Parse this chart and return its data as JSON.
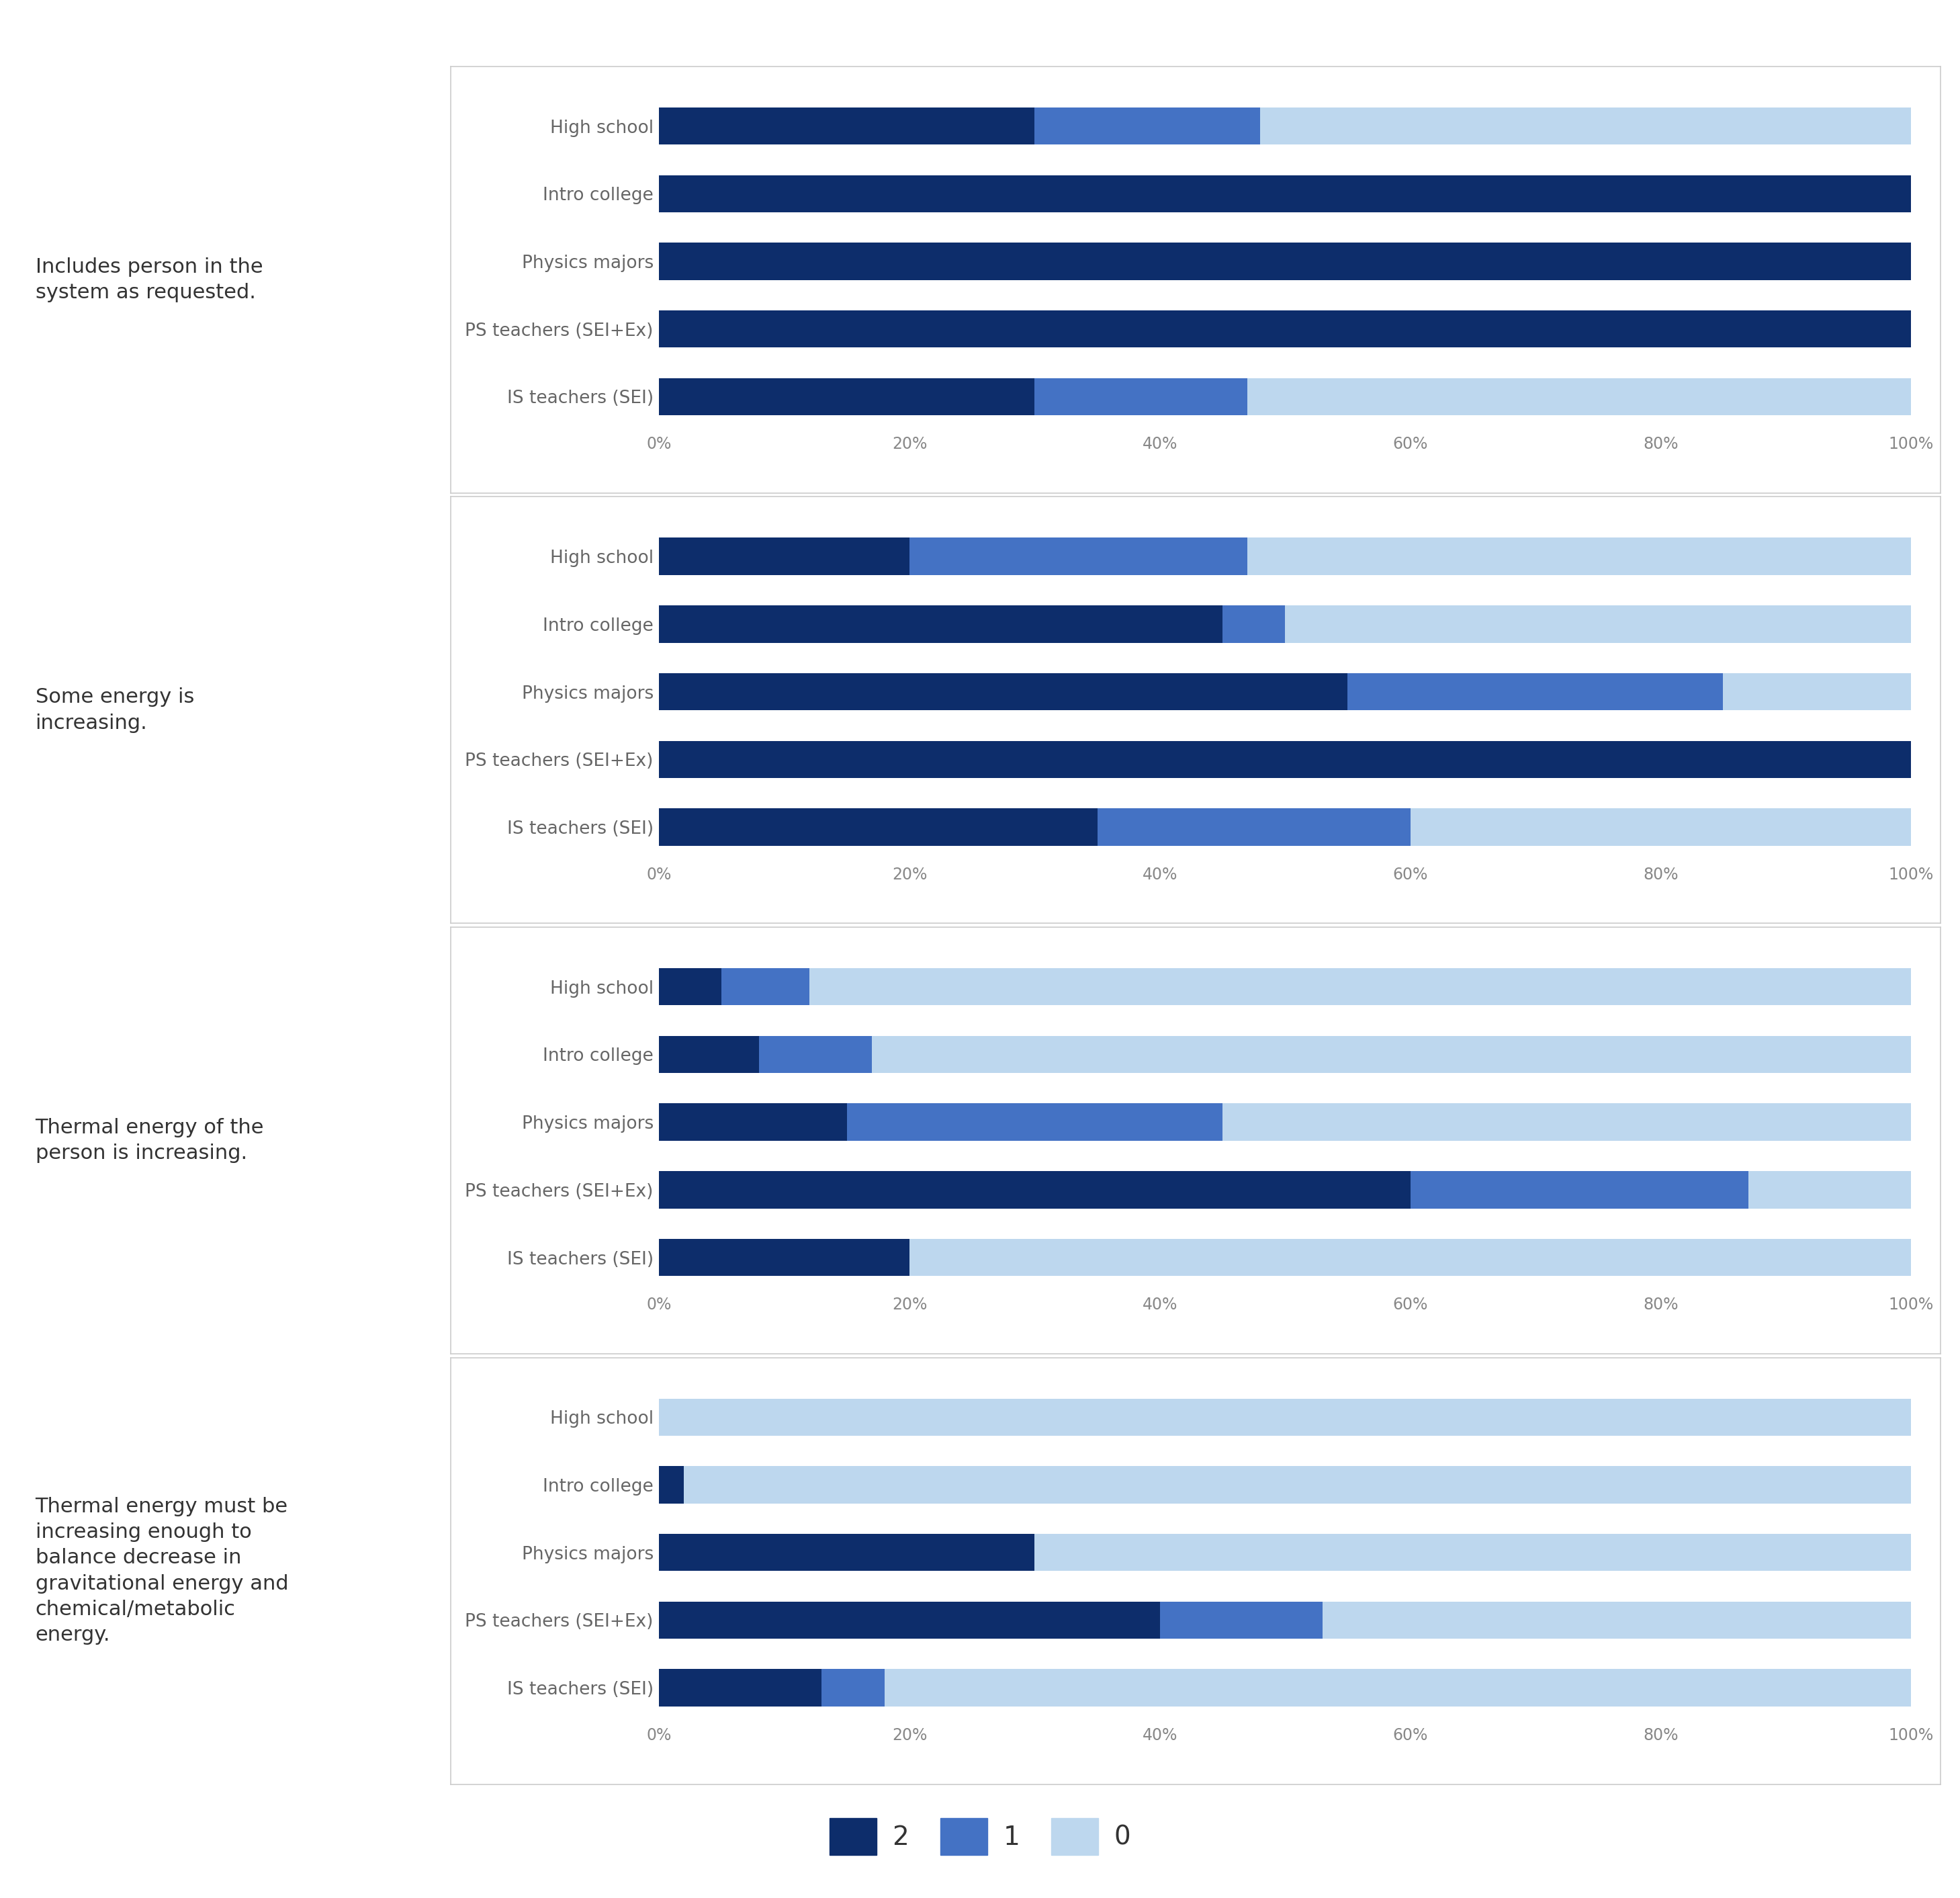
{
  "panels": [
    {
      "label": "Includes person in the\nsystem as requested.",
      "categories": [
        "IS teachers (SEI)",
        "PS teachers (SEI+Ex)",
        "Physics majors",
        "Intro college",
        "High school"
      ],
      "val2": [
        30,
        100,
        100,
        100,
        30
      ],
      "val1": [
        17,
        0,
        0,
        0,
        18
      ],
      "val0": [
        53,
        0,
        0,
        0,
        52
      ]
    },
    {
      "label": "Some energy is\nincreasing.",
      "categories": [
        "IS teachers (SEI)",
        "PS teachers (SEI+Ex)",
        "Physics majors",
        "Intro college",
        "High school"
      ],
      "val2": [
        35,
        100,
        55,
        45,
        20
      ],
      "val1": [
        25,
        0,
        30,
        5,
        27
      ],
      "val0": [
        40,
        0,
        15,
        50,
        53
      ]
    },
    {
      "label": "Thermal energy of the\nperson is increasing.",
      "categories": [
        "IS teachers (SEI)",
        "PS teachers (SEI+Ex)",
        "Physics majors",
        "Intro college",
        "High school"
      ],
      "val2": [
        20,
        60,
        15,
        8,
        5
      ],
      "val1": [
        0,
        27,
        30,
        9,
        7
      ],
      "val0": [
        80,
        13,
        55,
        83,
        88
      ]
    },
    {
      "label": "Thermal energy must be\nincreasing enough to\nbalance decrease in\ngravitational energy and\nchemical/metabolic\nenergy.",
      "categories": [
        "IS teachers (SEI)",
        "PS teachers (SEI+Ex)",
        "Physics majors",
        "Intro college",
        "High school"
      ],
      "val2": [
        13,
        40,
        30,
        2,
        0
      ],
      "val1": [
        5,
        13,
        0,
        0,
        0
      ],
      "val0": [
        82,
        47,
        70,
        98,
        100
      ]
    }
  ],
  "color2": "#0d2d6b",
  "color1": "#4472c4",
  "color0": "#bdd7ee",
  "bg_color": "#ffffff",
  "panel_border_color": "#cccccc",
  "tick_color": "#888888",
  "label_color": "#333333",
  "cat_color": "#666666",
  "xtick_labels": [
    "0%",
    "20%",
    "40%",
    "60%",
    "80%",
    "100%"
  ],
  "xtick_vals": [
    0,
    20,
    40,
    60,
    80,
    100
  ],
  "label_fontsize": 22,
  "cat_fontsize": 19,
  "tick_fontsize": 17,
  "legend_fontsize": 28,
  "bar_height": 0.55,
  "grid_color": "#ffffff",
  "grid_linewidth": 1.5
}
